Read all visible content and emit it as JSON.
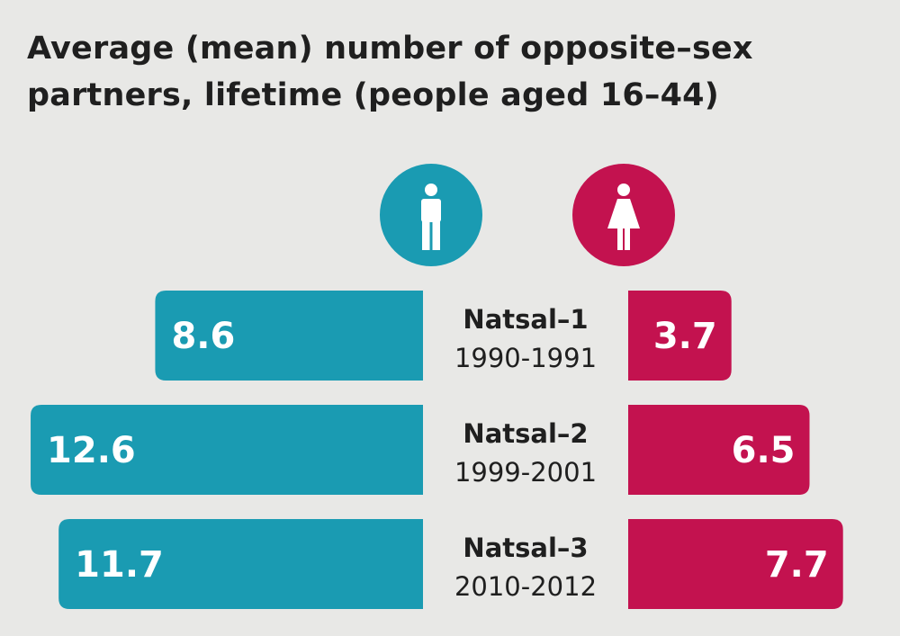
{
  "chart_data": {
    "type": "bar",
    "title": "Average (mean) number of opposite–sex partners, lifetime (people aged 16–44)",
    "categories": [
      {
        "name": "Natsal–1",
        "period": "1990-1991"
      },
      {
        "name": "Natsal–2",
        "period": "1999-2001"
      },
      {
        "name": "Natsal–3",
        "period": "2010-2012"
      }
    ],
    "series": [
      {
        "icon": "male-icon",
        "color": "#1a9bb2",
        "values": [
          8.6,
          12.6,
          11.7
        ],
        "labels": [
          "8.6",
          "12.6",
          "11.7"
        ]
      },
      {
        "icon": "female-icon",
        "color": "#c3124f",
        "values": [
          3.7,
          6.5,
          7.7
        ],
        "labels": [
          "3.7",
          "6.5",
          "7.7"
        ]
      }
    ],
    "layout": "back-to-back horizontal bars",
    "grid": false
  }
}
